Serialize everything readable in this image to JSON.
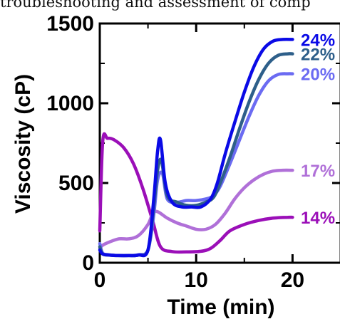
{
  "page": {
    "caption_fragment": "troubleshooting and assessment of comp"
  },
  "chart_data": {
    "type": "line",
    "title": "",
    "xlabel": "Time (min)",
    "ylabel": "Viscosity (cP)",
    "xlim": [
      0,
      25
    ],
    "ylim": [
      0,
      1500
    ],
    "xticks": [
      "0",
      "10",
      "20"
    ],
    "yticks": [
      "0",
      "500",
      "1000",
      "1500"
    ],
    "grid": false,
    "legend": "inline labels at right end of each curve",
    "series": [
      {
        "name": "14%",
        "color": "#9b0fb8",
        "x": [
          0,
          0.3,
          0.8,
          1.5,
          2.5,
          3.5,
          4.5,
          5.5,
          6.3,
          7.5,
          9,
          10.5,
          11.5,
          12.5,
          13.5,
          15,
          16.5,
          18,
          19.5,
          20
        ],
        "y": [
          200,
          760,
          780,
          770,
          720,
          620,
          460,
          260,
          100,
          70,
          68,
          72,
          90,
          140,
          200,
          240,
          265,
          280,
          285,
          285
        ]
      },
      {
        "name": "17%",
        "color": "#b070d8",
        "x": [
          0,
          0.3,
          1,
          2,
          3,
          4,
          5,
          5.5,
          6,
          7,
          8,
          9,
          10,
          11,
          12,
          13,
          14,
          15,
          16,
          17,
          18,
          19,
          20
        ],
        "y": [
          90,
          110,
          130,
          150,
          150,
          170,
          240,
          310,
          320,
          280,
          250,
          230,
          210,
          210,
          240,
          310,
          400,
          470,
          520,
          555,
          575,
          580,
          580
        ]
      },
      {
        "name": "20%",
        "color": "#6b6bf2",
        "x": [
          0,
          0.3,
          1,
          2,
          3,
          4,
          5,
          5.6,
          6,
          6.5,
          7,
          8,
          9,
          10,
          11,
          11.8,
          12.5,
          13.5,
          14.5,
          15.5,
          16.5,
          17.5,
          18.5,
          19.5,
          20
        ],
        "y": [
          120,
          60,
          50,
          45,
          45,
          50,
          80,
          300,
          520,
          560,
          400,
          380,
          390,
          390,
          400,
          420,
          480,
          620,
          770,
          920,
          1050,
          1140,
          1180,
          1185,
          1185
        ]
      },
      {
        "name": "22%",
        "color": "#2e5f8a",
        "x": [
          0,
          0.3,
          1,
          2,
          3,
          4,
          5,
          5.6,
          6,
          6.4,
          7,
          8,
          9,
          10,
          11,
          11.8,
          12.5,
          13.5,
          14.5,
          15.5,
          16.5,
          17.5,
          18.5,
          19.5,
          20
        ],
        "y": [
          100,
          55,
          48,
          45,
          45,
          48,
          80,
          350,
          580,
          640,
          420,
          380,
          360,
          360,
          380,
          410,
          500,
          660,
          840,
          1010,
          1150,
          1250,
          1300,
          1310,
          1310
        ]
      },
      {
        "name": "24%",
        "color": "#0a0ae6",
        "x": [
          0,
          0.3,
          1,
          2,
          3,
          4,
          5,
          5.6,
          6,
          6.3,
          6.8,
          7.5,
          8.5,
          9.5,
          10.5,
          11.5,
          12.2,
          13,
          14,
          15,
          16,
          17,
          18,
          19,
          20
        ],
        "y": [
          80,
          55,
          48,
          45,
          45,
          48,
          80,
          400,
          700,
          770,
          500,
          380,
          350,
          350,
          350,
          400,
          500,
          680,
          880,
          1070,
          1230,
          1340,
          1390,
          1400,
          1400
        ]
      }
    ]
  }
}
